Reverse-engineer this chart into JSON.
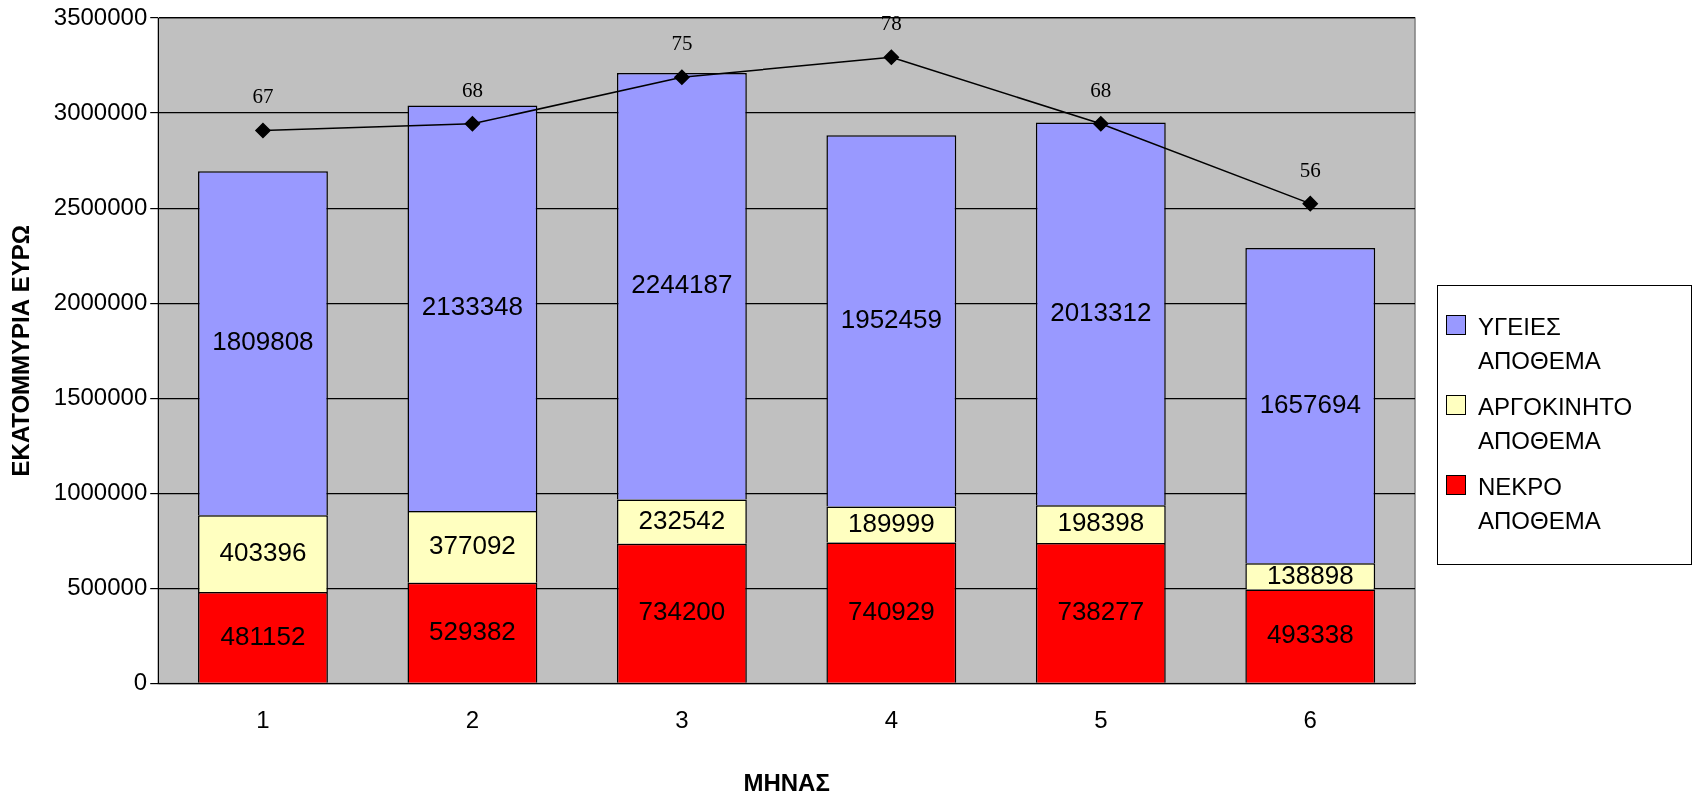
{
  "chart_data": {
    "type": "bar",
    "stacked": true,
    "xlabel": "ΜΗΝΑΣ",
    "ylabel": "ΕΚΑΤΟΜΜΥΡΙΑ ΕΥΡΩ",
    "categories": [
      "1",
      "2",
      "3",
      "4",
      "5",
      "6"
    ],
    "series": [
      {
        "name": "ΝΕΚΡΟ ΑΠΟΘΕΜΑ",
        "color": "#ff0000",
        "values": [
          481152,
          529382,
          734200,
          740929,
          738277,
          493338
        ]
      },
      {
        "name": "ΑΡΓΟΚΙΝΗΤΟ ΑΠΟΘΕΜΑ",
        "color": "#ffffc0",
        "values": [
          403396,
          377092,
          232542,
          189999,
          198398,
          138898
        ]
      },
      {
        "name": "ΥΓΕΙΕΣ ΑΠΟΘΕΜΑ",
        "color": "#9999ff",
        "values": [
          1809808,
          2133348,
          2244187,
          1952459,
          2013312,
          1657694
        ]
      },
      {
        "type": "line",
        "axis": "y2",
        "color": "#000000",
        "marker": "diamond",
        "values": [
          67,
          68,
          75,
          78,
          68,
          56
        ]
      }
    ],
    "ylim": [
      0,
      3500000
    ],
    "yticks": [
      0,
      500000,
      1000000,
      1500000,
      2000000,
      2500000,
      3000000,
      3500000
    ],
    "y2lim": [
      -16.1,
      83.9
    ],
    "grid": "y",
    "legend": "right",
    "data_labels": true
  }
}
